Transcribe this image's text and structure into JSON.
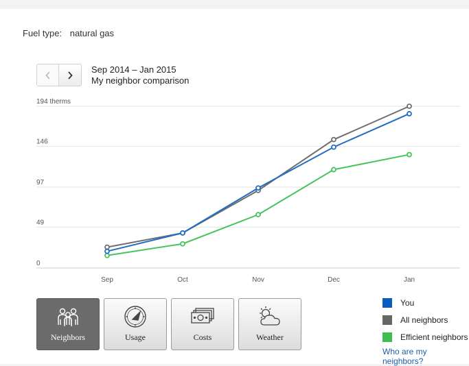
{
  "fuel": {
    "label": "Fuel type:",
    "value": "natural gas"
  },
  "period": {
    "range": "Sep 2014 – Jan 2015",
    "subtitle": "My neighbor comparison"
  },
  "nav": {
    "prev_icon": "chevron-left-icon",
    "next_icon": "chevron-right-icon"
  },
  "chart_data": {
    "type": "line",
    "categories": [
      "Sep",
      "Oct",
      "Nov",
      "Dec",
      "Jan"
    ],
    "ylim": [
      0,
      194
    ],
    "yticks": [
      {
        "value": 0,
        "label": "0"
      },
      {
        "value": 49,
        "label": "49"
      },
      {
        "value": 97,
        "label": "97"
      },
      {
        "value": 146,
        "label": "146"
      },
      {
        "value": 194,
        "label": "194 therms"
      }
    ],
    "grid": true,
    "series": [
      {
        "name": "All neighbors",
        "color": "#6e6e6e",
        "values": [
          25,
          42,
          93,
          154,
          194
        ]
      },
      {
        "name": "Efficient neighbors",
        "color": "#44c45a",
        "values": [
          15,
          29,
          64,
          118,
          136
        ]
      },
      {
        "name": "You",
        "color": "#1f6ec3",
        "values": [
          20,
          42,
          96,
          145,
          185
        ]
      }
    ]
  },
  "tiles": [
    {
      "label": "Neighbors",
      "icon": "people-icon",
      "active": true
    },
    {
      "label": "Usage",
      "icon": "gauge-icon",
      "active": false
    },
    {
      "label": "Costs",
      "icon": "money-icon",
      "active": false
    },
    {
      "label": "Weather",
      "icon": "weather-icon",
      "active": false
    }
  ],
  "legend": {
    "items": [
      {
        "label": "You",
        "color": "#0a5cc0"
      },
      {
        "label": "All neighbors",
        "color": "#666666"
      },
      {
        "label": "Efficient neighbors",
        "color": "#3dbf4e"
      }
    ],
    "link": "Who are my neighbors?"
  }
}
